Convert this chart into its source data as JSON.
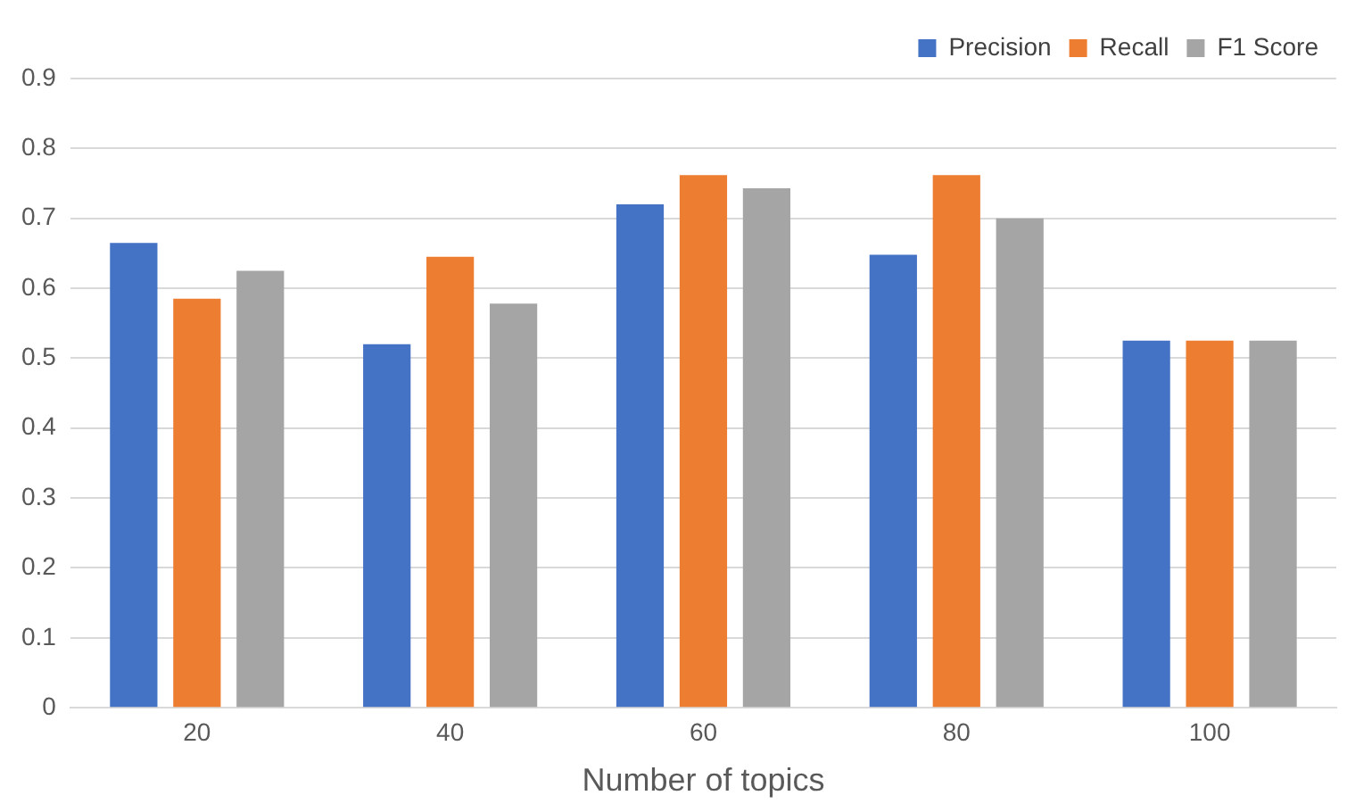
{
  "chart_data": {
    "type": "bar",
    "xlabel": "Number of topics",
    "categories": [
      "20",
      "40",
      "60",
      "80",
      "100"
    ],
    "series": [
      {
        "name": "Precision",
        "color": "#4472c4",
        "values": [
          0.665,
          0.52,
          0.72,
          0.648,
          0.525
        ]
      },
      {
        "name": "Recall",
        "color": "#ed7d31",
        "values": [
          0.585,
          0.645,
          0.762,
          0.762,
          0.525
        ]
      },
      {
        "name": "F1 Score",
        "color": "#a5a5a5",
        "values": [
          0.625,
          0.578,
          0.743,
          0.7,
          0.525
        ]
      }
    ],
    "ylim": [
      0,
      0.9
    ],
    "yticks": [
      0,
      0.1,
      0.2,
      0.3,
      0.4,
      0.5,
      0.6,
      0.7,
      0.8,
      0.9
    ],
    "grid": "y",
    "legend": "top right"
  }
}
